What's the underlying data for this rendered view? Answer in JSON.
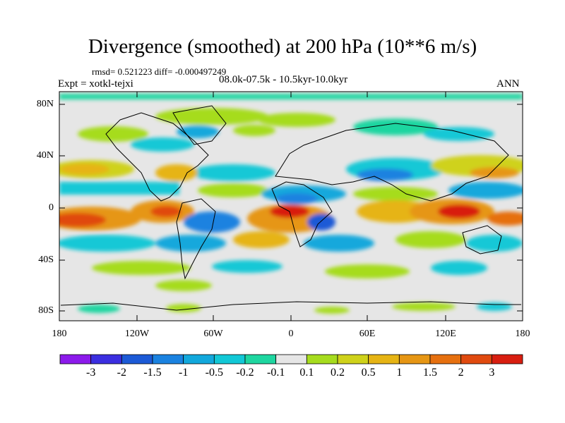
{
  "title": "Divergence (smoothed) at 200 hPa (10**6 m/s)",
  "stats": {
    "rmsd_label": "rmsd= 0.521223 diff= -0.000497249"
  },
  "period": "08.0k-07.5k - 10.5kyr-10.0kyr",
  "experiment": "Expt = xotkl-tejxi",
  "season": "ANN",
  "axes": {
    "lat_labels": [
      "80N",
      "40N",
      "0",
      "40S",
      "80S"
    ],
    "lon_labels": [
      "180",
      "120W",
      "60W",
      "0",
      "60E",
      "120E",
      "180"
    ]
  },
  "colorbar": {
    "labels": [
      "-3",
      "-2",
      "-1.5",
      "-1",
      "-0.5",
      "-0.2",
      "-0.1",
      "0.1",
      "0.2",
      "0.5",
      "1",
      "1.5",
      "2",
      "3"
    ],
    "colors": [
      "#8c1aeb",
      "#3b2ee0",
      "#1c5ad6",
      "#1a82e0",
      "#12a8dc",
      "#12c8d6",
      "#1ed6a0",
      "#e6e6e6",
      "#a6dc1e",
      "#cfd21a",
      "#e6b414",
      "#e69614",
      "#e6700f",
      "#e04a0f",
      "#d81e10"
    ]
  }
}
